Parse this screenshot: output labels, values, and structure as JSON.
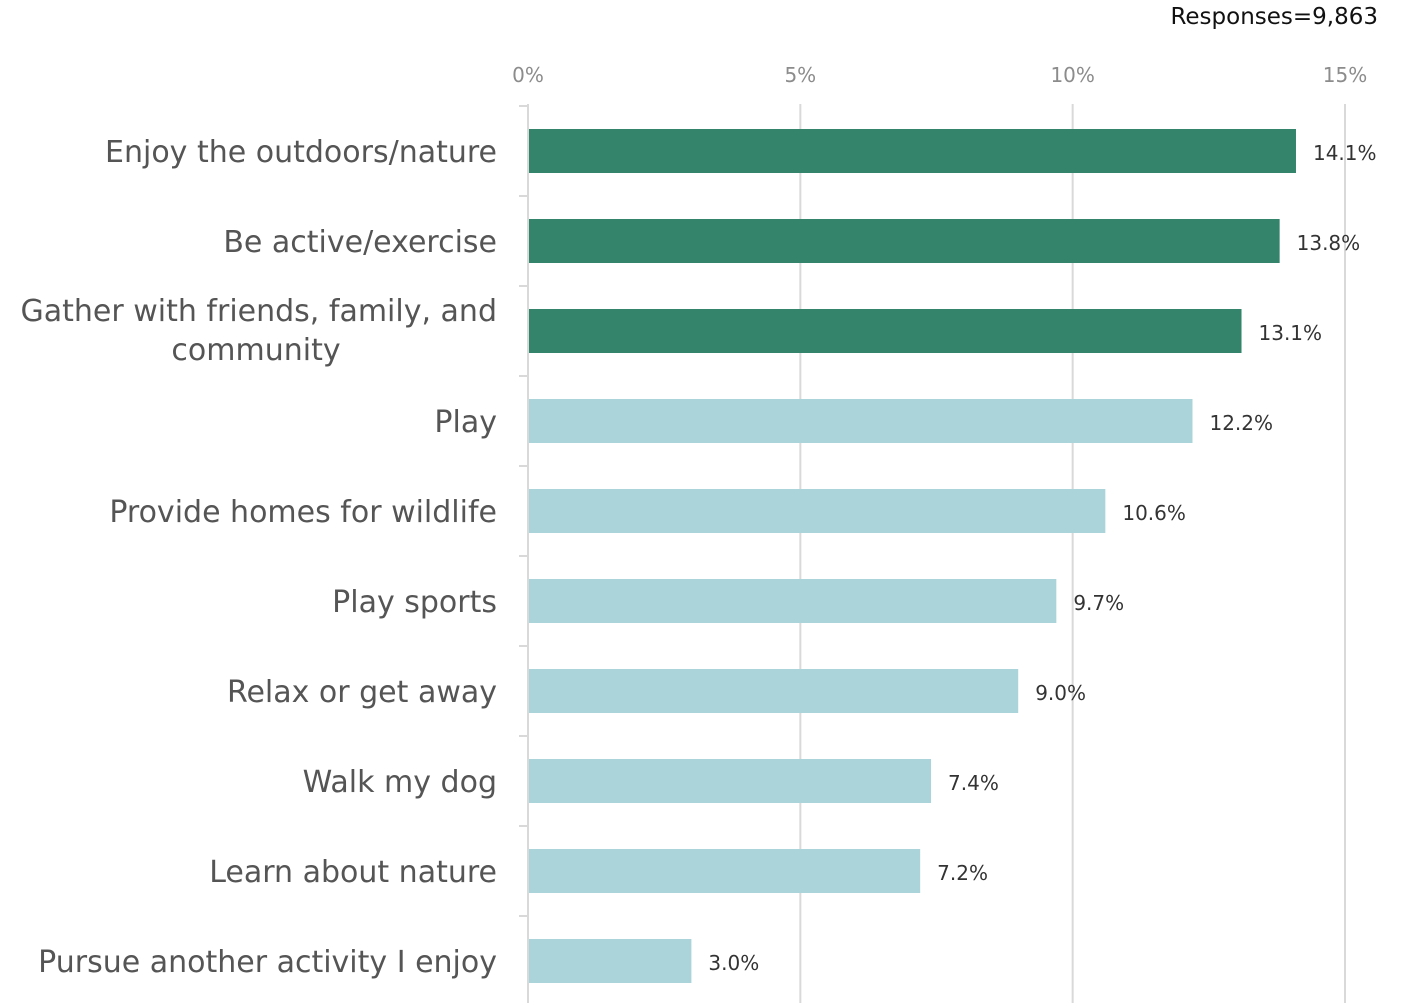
{
  "responses_note": "Responses=9,863",
  "colors": {
    "highlight": "#33846a",
    "normal": "#aad4da",
    "gridline": "#d9d9d9",
    "axis": "#d9d9d9"
  },
  "chart_data": {
    "type": "bar",
    "orientation": "horizontal",
    "title": "",
    "xlabel": "",
    "ylabel": "",
    "xlim": [
      0,
      15
    ],
    "x_ticks": [
      0,
      5,
      10,
      15
    ],
    "x_tick_labels": [
      "0%",
      "5%",
      "10%",
      "15%"
    ],
    "x_axis_position": "top",
    "grid": true,
    "legend": "none",
    "categories": [
      "Enjoy the outdoors/nature",
      "Be active/exercise",
      "Gather with friends, family, and community",
      "Play",
      "Provide homes for wildlife",
      "Play sports",
      "Relax or get away",
      "Walk my dog",
      "Learn about nature",
      "Pursue another activity I enjoy"
    ],
    "category_label_lines": [
      [
        "Enjoy the outdoors/nature"
      ],
      [
        "Be active/exercise"
      ],
      [
        "Gather with friends, family, and",
        "community"
      ],
      [
        "Play"
      ],
      [
        "Provide homes for wildlife"
      ],
      [
        "Play sports"
      ],
      [
        "Relax or get away"
      ],
      [
        "Walk my dog"
      ],
      [
        "Learn about nature"
      ],
      [
        "Pursue another activity I enjoy"
      ]
    ],
    "values": [
      14.1,
      13.8,
      13.1,
      12.2,
      10.6,
      9.7,
      9.0,
      7.4,
      7.2,
      3.0
    ],
    "value_labels": [
      "14.1%",
      "13.8%",
      "13.1%",
      "12.2%",
      "10.6%",
      "9.7%",
      "9.0%",
      "7.4%",
      "7.2%",
      "3.0%"
    ],
    "highlighted": [
      true,
      true,
      true,
      false,
      false,
      false,
      false,
      false,
      false,
      false
    ]
  }
}
